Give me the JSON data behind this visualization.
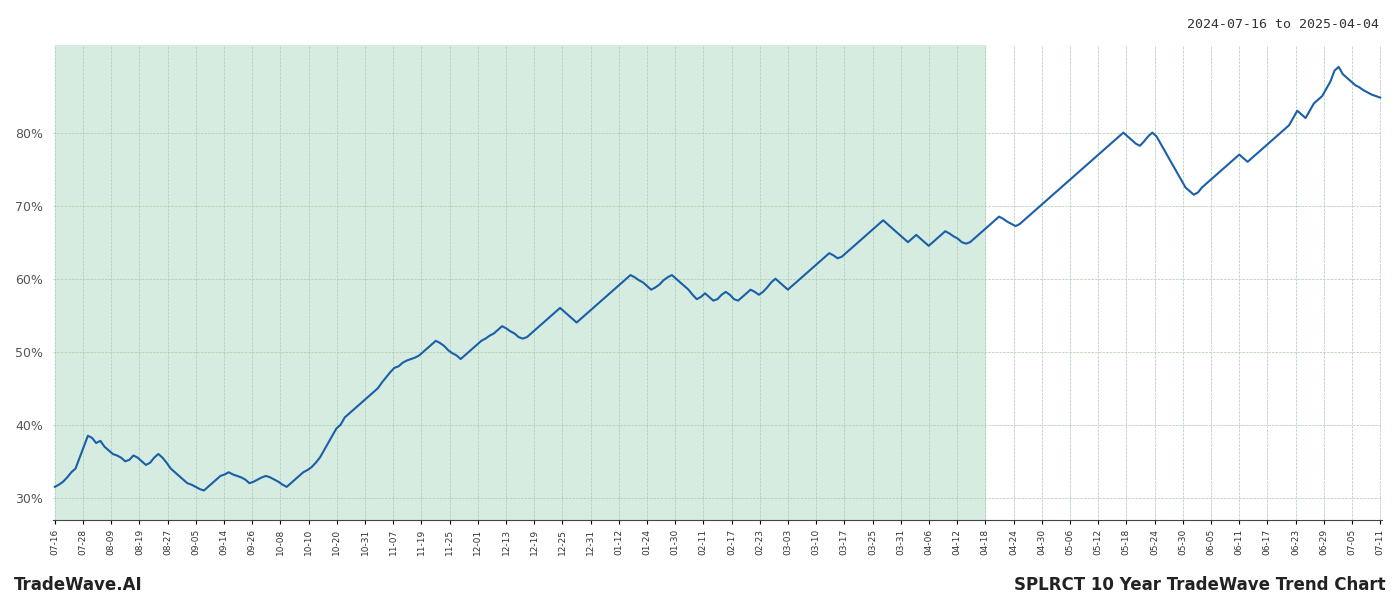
{
  "title_top_right": "2024-07-16 to 2025-04-04",
  "title_bottom_left": "TradeWave.AI",
  "title_bottom_right": "SPLRCT 10 Year TradeWave Trend Chart",
  "background_color": "#ffffff",
  "shaded_region_color": "#d6ece1",
  "line_color": "#1a5fa8",
  "line_width": 1.5,
  "grid_color": "#aaccaa",
  "yticks": [
    30,
    40,
    50,
    60,
    70,
    80
  ],
  "ylim": [
    27,
    92
  ],
  "x_labels": [
    "07-16",
    "07-28",
    "08-09",
    "08-19",
    "08-27",
    "09-05",
    "09-14",
    "09-26",
    "10-08",
    "10-10",
    "10-20",
    "10-31",
    "11-07",
    "11-19",
    "11-25",
    "12-01",
    "12-13",
    "12-19",
    "12-25",
    "12-31",
    "01-12",
    "01-24",
    "01-30",
    "02-11",
    "02-17",
    "02-23",
    "03-03",
    "03-10",
    "03-17",
    "03-25",
    "03-31",
    "04-06",
    "04-12",
    "04-18",
    "04-24",
    "04-30",
    "05-06",
    "05-12",
    "05-18",
    "05-24",
    "05-30",
    "06-05",
    "06-11",
    "06-17",
    "06-23",
    "06-29",
    "07-05",
    "07-11"
  ],
  "shaded_x_start_label": "07-16",
  "shaded_x_end_label": "04-18",
  "values": [
    31.5,
    31.8,
    32.2,
    32.8,
    33.5,
    34.0,
    35.5,
    37.0,
    38.5,
    38.2,
    37.5,
    37.8,
    37.0,
    36.5,
    36.0,
    35.8,
    35.5,
    35.0,
    35.2,
    35.8,
    35.5,
    35.0,
    34.5,
    34.8,
    35.5,
    36.0,
    35.5,
    34.8,
    34.0,
    33.5,
    33.0,
    32.5,
    32.0,
    31.8,
    31.5,
    31.2,
    31.0,
    31.5,
    32.0,
    32.5,
    33.0,
    33.2,
    33.5,
    33.2,
    33.0,
    32.8,
    32.5,
    32.0,
    32.2,
    32.5,
    32.8,
    33.0,
    32.8,
    32.5,
    32.2,
    31.8,
    31.5,
    32.0,
    32.5,
    33.0,
    33.5,
    33.8,
    34.2,
    34.8,
    35.5,
    36.5,
    37.5,
    38.5,
    39.5,
    40.0,
    41.0,
    41.5,
    42.0,
    42.5,
    43.0,
    43.5,
    44.0,
    44.5,
    45.0,
    45.8,
    46.5,
    47.2,
    47.8,
    48.0,
    48.5,
    48.8,
    49.0,
    49.2,
    49.5,
    50.0,
    50.5,
    51.0,
    51.5,
    51.2,
    50.8,
    50.2,
    49.8,
    49.5,
    49.0,
    49.5,
    50.0,
    50.5,
    51.0,
    51.5,
    51.8,
    52.2,
    52.5,
    53.0,
    53.5,
    53.2,
    52.8,
    52.5,
    52.0,
    51.8,
    52.0,
    52.5,
    53.0,
    53.5,
    54.0,
    54.5,
    55.0,
    55.5,
    56.0,
    55.5,
    55.0,
    54.5,
    54.0,
    54.5,
    55.0,
    55.5,
    56.0,
    56.5,
    57.0,
    57.5,
    58.0,
    58.5,
    59.0,
    59.5,
    60.0,
    60.5,
    60.2,
    59.8,
    59.5,
    59.0,
    58.5,
    58.8,
    59.2,
    59.8,
    60.2,
    60.5,
    60.0,
    59.5,
    59.0,
    58.5,
    57.8,
    57.2,
    57.5,
    58.0,
    57.5,
    57.0,
    57.2,
    57.8,
    58.2,
    57.8,
    57.2,
    57.0,
    57.5,
    58.0,
    58.5,
    58.2,
    57.8,
    58.2,
    58.8,
    59.5,
    60.0,
    59.5,
    59.0,
    58.5,
    59.0,
    59.5,
    60.0,
    60.5,
    61.0,
    61.5,
    62.0,
    62.5,
    63.0,
    63.5,
    63.2,
    62.8,
    63.0,
    63.5,
    64.0,
    64.5,
    65.0,
    65.5,
    66.0,
    66.5,
    67.0,
    67.5,
    68.0,
    67.5,
    67.0,
    66.5,
    66.0,
    65.5,
    65.0,
    65.5,
    66.0,
    65.5,
    65.0,
    64.5,
    65.0,
    65.5,
    66.0,
    66.5,
    66.2,
    65.8,
    65.5,
    65.0,
    64.8,
    65.0,
    65.5,
    66.0,
    66.5,
    67.0,
    67.5,
    68.0,
    68.5,
    68.2,
    67.8,
    67.5,
    67.2,
    67.5,
    68.0,
    68.5,
    69.0,
    69.5,
    70.0,
    70.5,
    71.0,
    71.5,
    72.0,
    72.5,
    73.0,
    73.5,
    74.0,
    74.5,
    75.0,
    75.5,
    76.0,
    76.5,
    77.0,
    77.5,
    78.0,
    78.5,
    79.0,
    79.5,
    80.0,
    79.5,
    79.0,
    78.5,
    78.2,
    78.8,
    79.5,
    80.0,
    79.5,
    78.5,
    77.5,
    76.5,
    75.5,
    74.5,
    73.5,
    72.5,
    72.0,
    71.5,
    71.8,
    72.5,
    73.0,
    73.5,
    74.0,
    74.5,
    75.0,
    75.5,
    76.0,
    76.5,
    77.0,
    76.5,
    76.0,
    76.5,
    77.0,
    77.5,
    78.0,
    78.5,
    79.0,
    79.5,
    80.0,
    80.5,
    81.0,
    82.0,
    83.0,
    82.5,
    82.0,
    83.0,
    84.0,
    84.5,
    85.0,
    86.0,
    87.0,
    88.5,
    89.0,
    88.0,
    87.5,
    87.0,
    86.5,
    86.2,
    85.8,
    85.5,
    85.2,
    85.0,
    84.8
  ]
}
